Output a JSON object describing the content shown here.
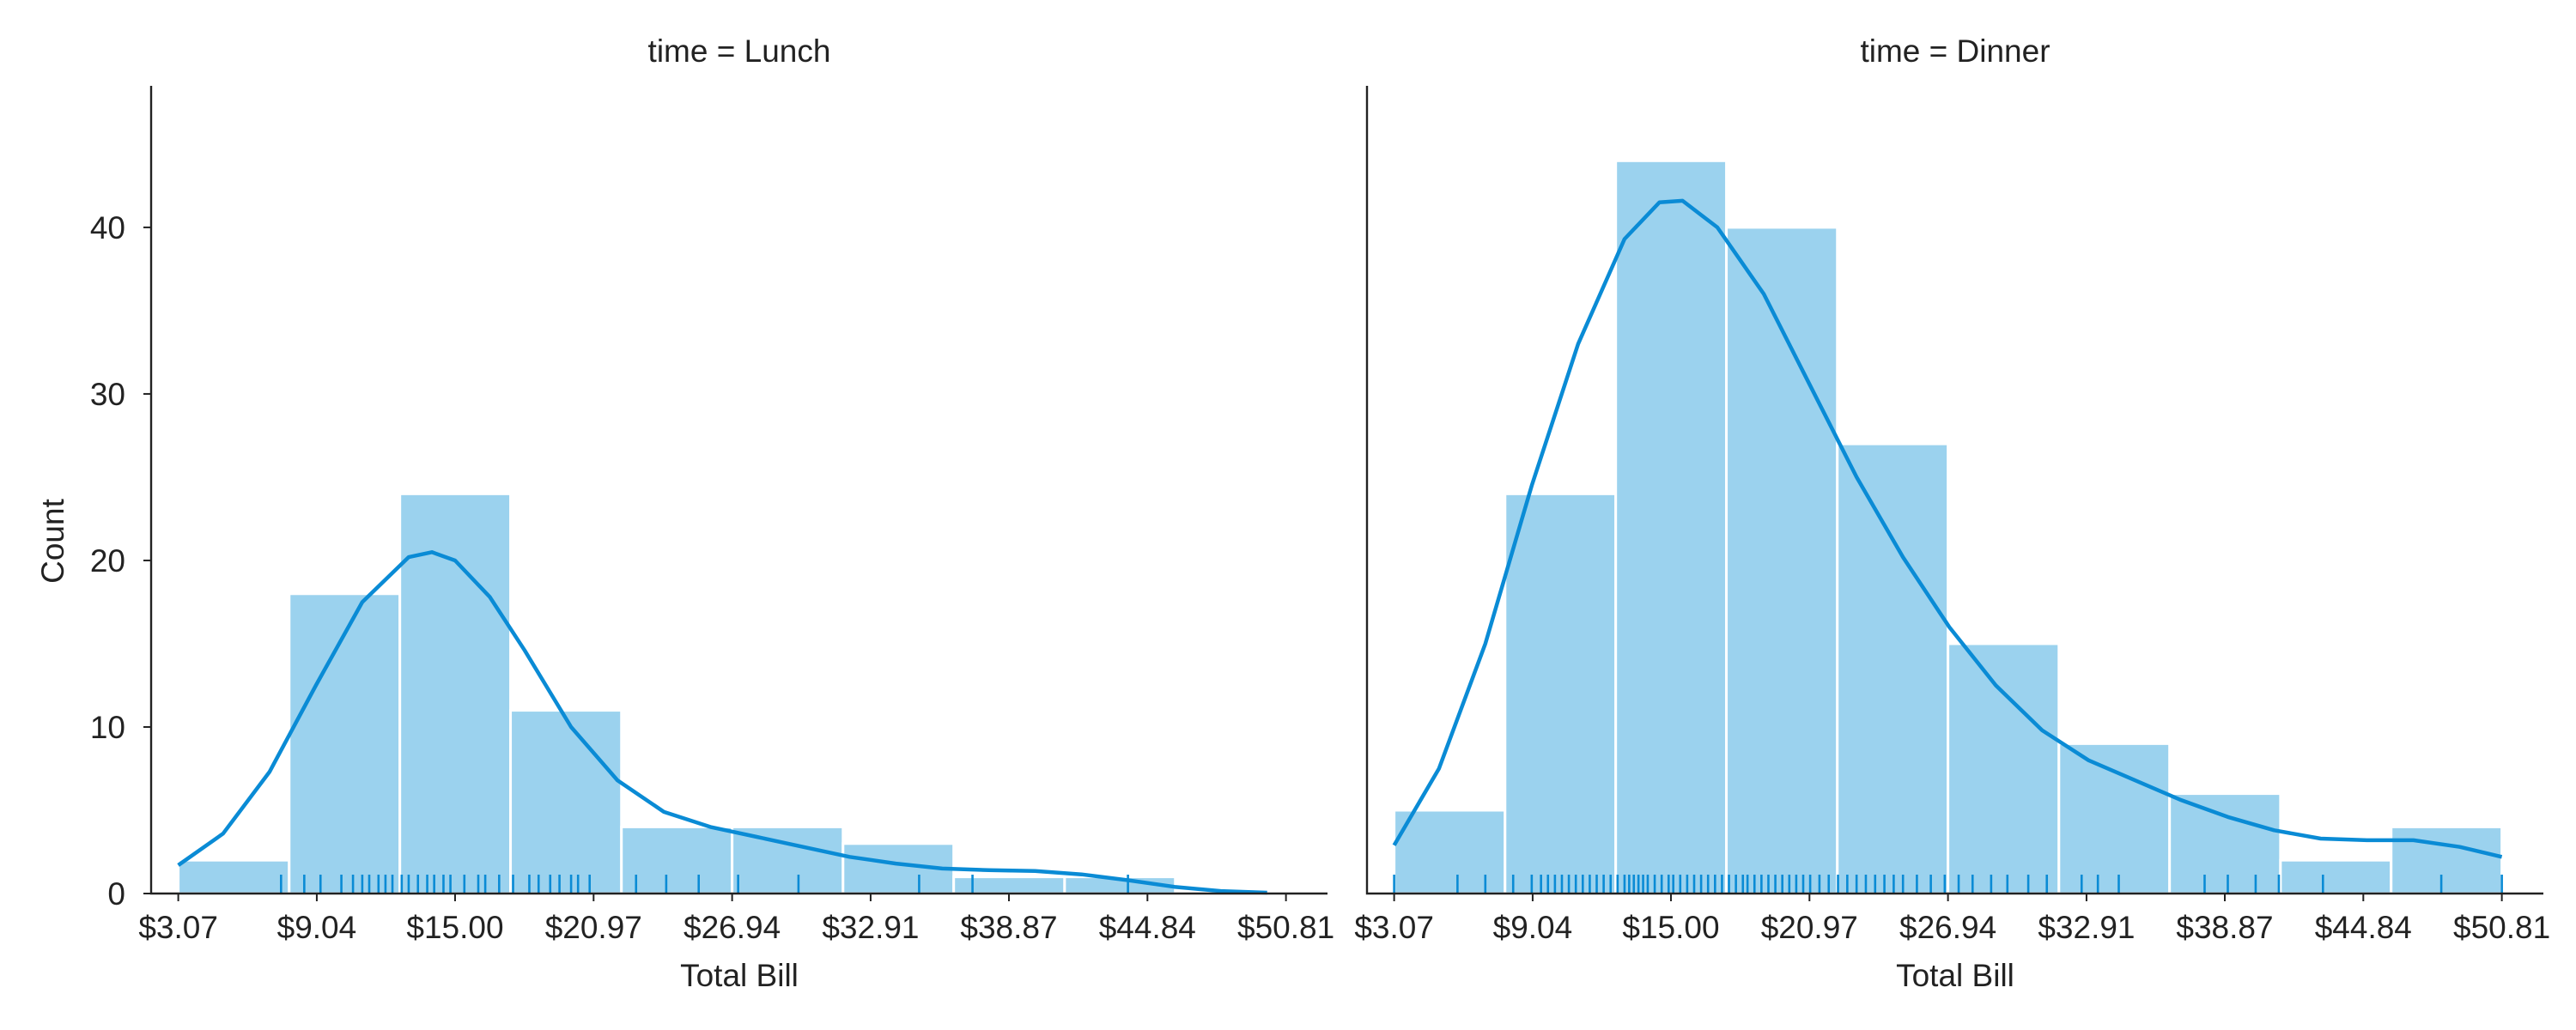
{
  "chart_data": {
    "type": "histogram",
    "ylabel": "Count",
    "ylim": [
      0,
      48.5
    ],
    "yticks": [
      0,
      10,
      20,
      30,
      40
    ],
    "grid": false,
    "colors": {
      "bar": "#9bd2ee",
      "kde": "#0a8bd5",
      "rug": "#0a8bd5",
      "axis": "#222222"
    },
    "bin_edges": [
      3.07,
      6.05,
      9.04,
      12.02,
      15.0,
      17.99,
      20.97,
      23.96,
      26.94,
      29.92,
      32.91,
      35.89,
      38.87,
      41.86,
      44.84,
      47.83,
      50.81
    ],
    "xlim": [
      1.9,
      52.6
    ],
    "xticks": [
      3.07,
      9.04,
      15.0,
      20.97,
      26.94,
      32.91,
      38.87,
      44.84,
      50.81
    ],
    "xtick_labels": [
      "$3.07",
      "$9.04",
      "$15.00",
      "$20.97",
      "$26.94",
      "$32.91",
      "$38.87",
      "$44.84",
      "$50.81"
    ],
    "panels": [
      {
        "title": "time = Lunch",
        "xlabel": "Total Bill",
        "bins": [
          {
            "x0": 3.07,
            "x1": 7.85,
            "count": 2
          },
          {
            "x0": 7.85,
            "x1": 12.62,
            "count": 18
          },
          {
            "x0": 12.62,
            "x1": 17.39,
            "count": 24
          },
          {
            "x0": 17.39,
            "x1": 22.17,
            "count": 11
          },
          {
            "x0": 22.17,
            "x1": 26.94,
            "count": 4
          },
          {
            "x0": 26.94,
            "x1": 31.72,
            "count": 4
          },
          {
            "x0": 31.72,
            "x1": 36.49,
            "count": 3
          },
          {
            "x0": 36.49,
            "x1": 41.27,
            "count": 1
          },
          {
            "x0": 41.27,
            "x1": 46.04,
            "count": 1
          }
        ],
        "kde": [
          [
            3.07,
            1.7
          ],
          [
            5.0,
            3.6
          ],
          [
            7.0,
            7.3
          ],
          [
            9.0,
            12.5
          ],
          [
            11.0,
            17.5
          ],
          [
            13.0,
            20.2
          ],
          [
            14.0,
            20.5
          ],
          [
            15.0,
            20.0
          ],
          [
            16.5,
            17.8
          ],
          [
            18.0,
            14.6
          ],
          [
            20.0,
            10.0
          ],
          [
            22.0,
            6.8
          ],
          [
            24.0,
            4.9
          ],
          [
            26.0,
            4.0
          ],
          [
            28.0,
            3.4
          ],
          [
            30.0,
            2.8
          ],
          [
            32.0,
            2.2
          ],
          [
            34.0,
            1.8
          ],
          [
            36.0,
            1.5
          ],
          [
            38.0,
            1.4
          ],
          [
            40.0,
            1.35
          ],
          [
            42.0,
            1.15
          ],
          [
            44.0,
            0.8
          ],
          [
            46.0,
            0.4
          ],
          [
            48.0,
            0.15
          ],
          [
            50.0,
            0.05
          ]
        ],
        "rug": [
          7.5,
          8.5,
          9.2,
          10.1,
          10.6,
          11.0,
          11.3,
          11.7,
          12.0,
          12.3,
          12.7,
          13.0,
          13.4,
          13.8,
          14.1,
          14.5,
          14.8,
          15.4,
          16.0,
          16.3,
          16.9,
          17.5,
          18.2,
          18.6,
          19.1,
          19.5,
          20.0,
          20.3,
          20.8,
          22.8,
          24.1,
          25.5,
          27.2,
          29.8,
          35.0,
          37.3,
          44.0
        ]
      },
      {
        "title": "time = Dinner",
        "xlabel": "Total Bill",
        "bins": [
          {
            "x0": 3.07,
            "x1": 7.85,
            "count": 5
          },
          {
            "x0": 7.85,
            "x1": 12.62,
            "count": 24
          },
          {
            "x0": 12.62,
            "x1": 17.39,
            "count": 44
          },
          {
            "x0": 17.39,
            "x1": 22.17,
            "count": 40
          },
          {
            "x0": 22.17,
            "x1": 26.94,
            "count": 27
          },
          {
            "x0": 26.94,
            "x1": 31.72,
            "count": 15
          },
          {
            "x0": 31.72,
            "x1": 36.49,
            "count": 9
          },
          {
            "x0": 36.49,
            "x1": 41.27,
            "count": 6
          },
          {
            "x0": 41.27,
            "x1": 46.04,
            "count": 2
          },
          {
            "x0": 46.04,
            "x1": 50.81,
            "count": 4
          }
        ],
        "kde": [
          [
            3.07,
            2.9
          ],
          [
            5.0,
            7.5
          ],
          [
            7.0,
            15.0
          ],
          [
            9.0,
            24.5
          ],
          [
            11.0,
            33.0
          ],
          [
            13.0,
            39.3
          ],
          [
            14.5,
            41.5
          ],
          [
            15.5,
            41.6
          ],
          [
            17.0,
            40.0
          ],
          [
            19.0,
            36.0
          ],
          [
            21.0,
            30.5
          ],
          [
            23.0,
            25.0
          ],
          [
            25.0,
            20.2
          ],
          [
            27.0,
            16.0
          ],
          [
            29.0,
            12.5
          ],
          [
            31.0,
            9.8
          ],
          [
            33.0,
            8.0
          ],
          [
            35.0,
            6.8
          ],
          [
            37.0,
            5.6
          ],
          [
            39.0,
            4.6
          ],
          [
            41.0,
            3.8
          ],
          [
            43.0,
            3.3
          ],
          [
            45.0,
            3.2
          ],
          [
            47.0,
            3.2
          ],
          [
            49.0,
            2.8
          ],
          [
            50.81,
            2.2
          ]
        ],
        "rug": [
          3.07,
          5.8,
          7.0,
          8.2,
          9.0,
          9.4,
          9.7,
          10.0,
          10.3,
          10.6,
          10.9,
          11.2,
          11.5,
          11.8,
          12.1,
          12.4,
          12.7,
          13.0,
          13.2,
          13.4,
          13.6,
          13.8,
          14.0,
          14.3,
          14.6,
          14.9,
          15.1,
          15.4,
          15.7,
          16.0,
          16.3,
          16.6,
          16.9,
          17.2,
          17.5,
          17.8,
          18.1,
          18.3,
          18.6,
          18.9,
          19.2,
          19.5,
          19.8,
          20.1,
          20.4,
          20.7,
          21.0,
          21.4,
          21.8,
          22.2,
          22.6,
          23.0,
          23.4,
          23.8,
          24.2,
          24.6,
          25.0,
          25.6,
          26.2,
          26.8,
          27.4,
          28.0,
          28.8,
          29.5,
          30.4,
          31.2,
          32.7,
          33.4,
          34.3,
          38.0,
          39.0,
          40.2,
          41.2,
          43.1,
          48.2,
          50.81
        ]
      }
    ]
  }
}
